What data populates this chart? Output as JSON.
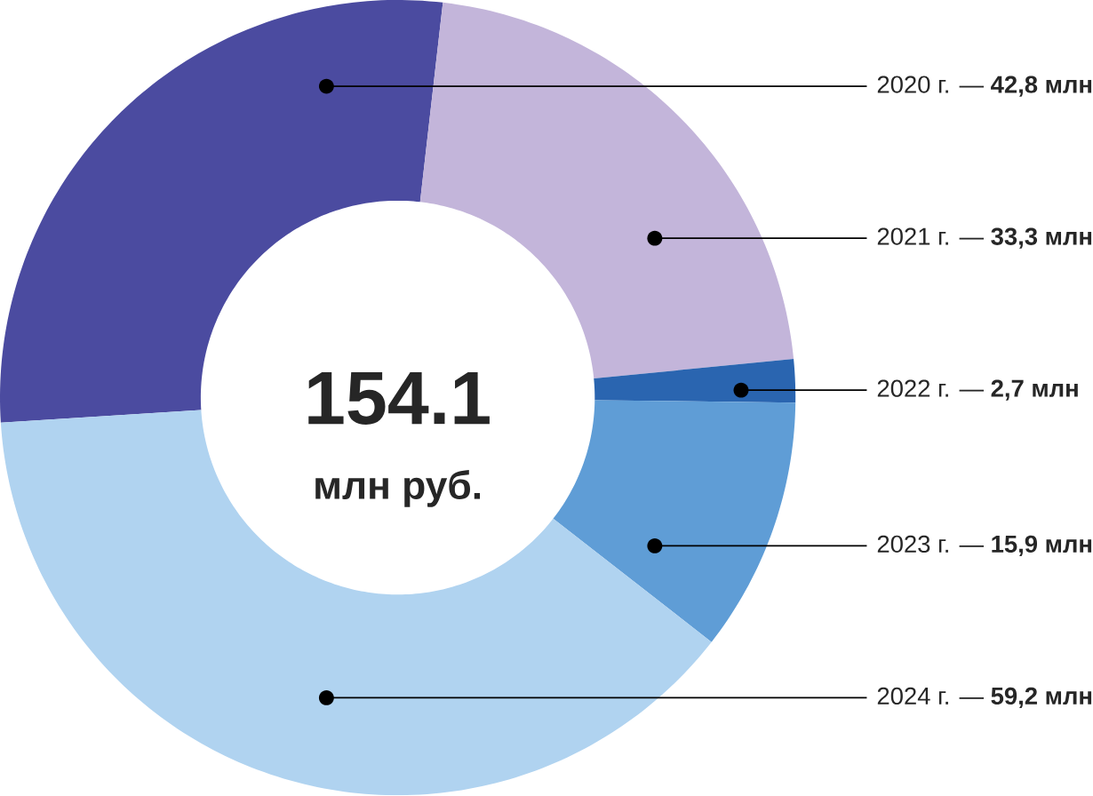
{
  "chart_data": {
    "type": "donut",
    "categories": [
      "2020 г.",
      "2021 г.",
      "2022 г.",
      "2023 г.",
      "2024 г."
    ],
    "values": [
      42.8,
      33.3,
      2.7,
      15.9,
      59.2
    ],
    "colors": [
      "#4b4ba0",
      "#c3b5da",
      "#2a65b0",
      "#5f9dd6",
      "#b0d3f0"
    ],
    "value_labels": [
      "— **42,8 млн**",
      "— **33,3 млн**",
      "— **2,7 млн**",
      "— **15,9 млн**",
      "— **59,2 млн**"
    ],
    "annotations": [
      "154.1",
      "млн руб."
    ]
  }
}
